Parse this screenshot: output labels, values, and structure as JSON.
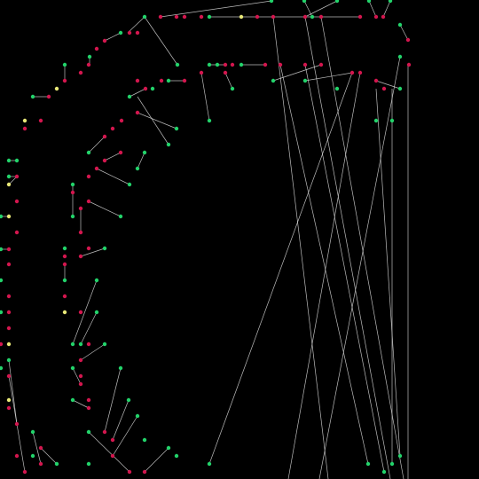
{
  "canvas": {
    "background": "#000000"
  },
  "palette": {
    "edge": "#dddddd",
    "node_green": "#22d36a",
    "node_red": "#d3164e",
    "node_yellow": "#e8e878"
  }
}
